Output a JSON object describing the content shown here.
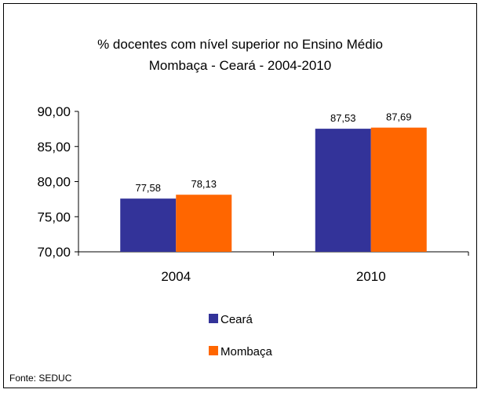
{
  "chart_data": {
    "type": "bar",
    "title": "% docentes com nível superior no Ensino Médio",
    "subtitle": "Mombaça  -  Ceará - 2004-2010",
    "categories": [
      "2004",
      "2010"
    ],
    "series": [
      {
        "name": "Ceará",
        "values": [
          77.58,
          87.53
        ],
        "labels": [
          "77,58",
          "87,53"
        ],
        "color": "#333399"
      },
      {
        "name": "Mombaça",
        "values": [
          78.13,
          87.69
        ],
        "labels": [
          "78,13",
          "87,69"
        ],
        "color": "#FF6600"
      }
    ],
    "ylim": [
      70,
      90
    ],
    "yticks": [
      70,
      75,
      80,
      85,
      90
    ],
    "ytick_labels": [
      "70,00",
      "75,00",
      "80,00",
      "85,00",
      "90,00"
    ],
    "grid": false,
    "legend_position": "bottom",
    "xlabel": "",
    "ylabel": ""
  },
  "source_note": "Fonte: SEDUC"
}
